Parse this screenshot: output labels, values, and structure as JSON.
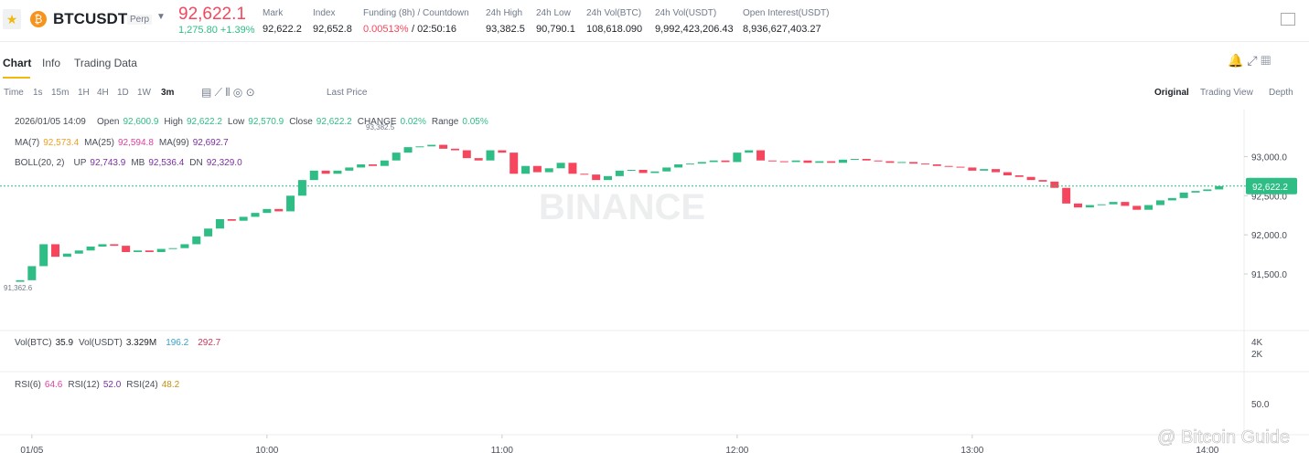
{
  "header": {
    "symbol": "BTCUSDT",
    "badge": "Perp",
    "price": "92,622.1",
    "change": "1,275.80",
    "change_pct": "+1.39%",
    "stats": [
      {
        "label": "Mark",
        "value": "92,622.2"
      },
      {
        "label": "Index",
        "value": "92,652.8"
      },
      {
        "label": "Funding (8h) / Countdown",
        "value": "0.00513%",
        "extra": "/ 02:50:16"
      },
      {
        "label": "24h High",
        "value": "93,382.5"
      },
      {
        "label": "24h Low",
        "value": "90,790.1"
      },
      {
        "label": "24h Vol(BTC)",
        "value": "108,618.090"
      },
      {
        "label": "24h Vol(USDT)",
        "value": "9,992,423,206.43"
      },
      {
        "label": "Open Interest(USDT)",
        "value": "8,936,627,403.27"
      }
    ]
  },
  "tabs": [
    "Chart",
    "Info",
    "Trading Data"
  ],
  "toolbar": {
    "intervals": [
      "Time",
      "1s",
      "15m",
      "1H",
      "4H",
      "1D",
      "1W",
      "3m"
    ],
    "price_type": "Last Price",
    "views": [
      "Original",
      "Trading View",
      "Depth"
    ]
  },
  "legend": {
    "date": "2026/01/05 14:09",
    "ohlc": [
      {
        "label": "Open",
        "value": "92,600.9"
      },
      {
        "label": "High",
        "value": "92,622.2"
      },
      {
        "label": "Low",
        "value": "92,570.9"
      },
      {
        "label": "Close",
        "value": "92,622.2"
      },
      {
        "label": "CHANGE",
        "value": "0.02%"
      },
      {
        "label": "Range",
        "value": "0.05%"
      }
    ],
    "ma": [
      {
        "label": "MA(7)",
        "value": "92,573.4"
      },
      {
        "label": "MA(25)",
        "value": "92,594.8"
      },
      {
        "label": "MA(99)",
        "value": "92,692.7"
      }
    ],
    "boll": [
      {
        "label": "BOLL(20, 2)",
        "value": ""
      },
      {
        "label": "UP",
        "value": "92,743.9"
      },
      {
        "label": "MB",
        "value": "92,536.4"
      },
      {
        "label": "DN",
        "value": "92,329.0"
      }
    ],
    "vol": [
      {
        "label": "Vol(BTC)",
        "value": "35.9"
      },
      {
        "label": "Vol(USDT)",
        "value": "3.329M"
      },
      {
        "label": "",
        "value": "196.2"
      },
      {
        "label": "",
        "value": "292.7"
      }
    ],
    "rsi": [
      {
        "label": "RSI(6)",
        "value": "64.6"
      },
      {
        "label": "RSI(12)",
        "value": "52.0"
      },
      {
        "label": "RSI(24)",
        "value": "48.2"
      }
    ]
  },
  "chart_data": {
    "type": "candlestick",
    "open": 91400,
    "close": [
      91420,
      91600,
      91880,
      91720,
      91760,
      91800,
      91850,
      91880,
      91860,
      91780,
      91800,
      91780,
      91820,
      91830,
      91880,
      91980,
      92080,
      92200,
      92180,
      92230,
      92280,
      92330,
      92300,
      92500,
      92700,
      92820,
      92780,
      92820,
      92860,
      92900,
      92880,
      92950,
      93050,
      93120,
      93130,
      93150,
      93100,
      93080,
      92980,
      92950,
      93080,
      93050,
      92780,
      92880,
      92800,
      92850,
      92920,
      92780,
      92770,
      92700,
      92750,
      92820,
      92830,
      92790,
      92810,
      92860,
      92900,
      92910,
      92930,
      92950,
      92930,
      93050,
      93080,
      92950,
      92940,
      92930,
      92950,
      92920,
      92940,
      92920,
      92960,
      92970,
      92950,
      92940,
      92920,
      92930,
      92910,
      92900,
      92880,
      92870,
      92860,
      92820,
      92840,
      92800,
      92760,
      92740,
      92700,
      92680,
      92600,
      92400,
      92350,
      92380,
      92390,
      92420,
      92370,
      92320,
      92380,
      92440,
      92470,
      92540,
      92560,
      92580,
      92622.2
    ],
    "up_color": "#2ebd85",
    "down_color": "#f6465d",
    "ylim": [
      90800,
      93600
    ],
    "yticks": [
      {
        "value": 91500,
        "label": "91,500.0"
      },
      {
        "value": 92000,
        "label": "92,000.0"
      },
      {
        "value": 92500,
        "label": "92,500.0"
      },
      {
        "value": 93000,
        "label": "93,000.0"
      }
    ],
    "last_price": {
      "value": 92622.2,
      "label": "92,622.2"
    },
    "high_label": "93,382.5",
    "low_label": "91,362.6",
    "xticks": [
      {
        "value": 1,
        "label": "01/05"
      },
      {
        "value": 21,
        "label": "10:00"
      },
      {
        "value": 41,
        "label": "11:00"
      },
      {
        "value": 61,
        "label": "12:00"
      },
      {
        "value": 81,
        "label": "13:00"
      },
      {
        "value": 101,
        "label": "14:00"
      }
    ],
    "vol_ticks": [
      "4K",
      "2K"
    ],
    "rsi_ticks": [
      "50.0"
    ]
  },
  "watermark": "BINANCE",
  "credit": "@ Bitcoin Guide"
}
